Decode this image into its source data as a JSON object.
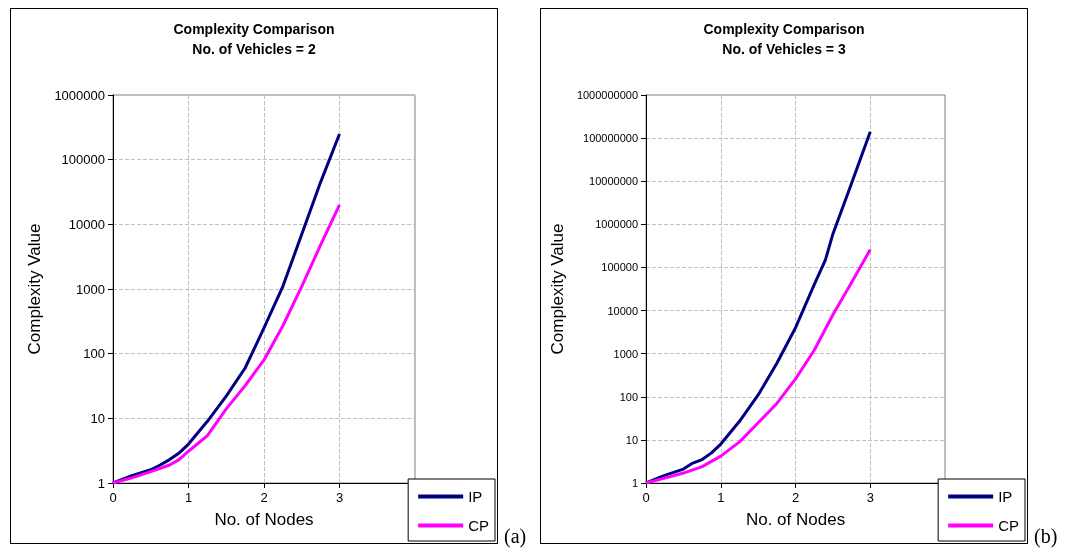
{
  "chart_data": [
    {
      "type": "line",
      "title": "Complexity Comparison",
      "subtitle": "No. of Vehicles = 2",
      "xlabel": "No. of Nodes",
      "ylabel": "Complexity Value",
      "annotations": [
        "(a)"
      ],
      "log": "y",
      "grid": true,
      "legend": "bottom right",
      "marker": "none",
      "line_style": "solid",
      "xlim": [
        0,
        4
      ],
      "xticks": [
        0,
        1,
        2,
        3
      ],
      "ylim": [
        1,
        1000000
      ],
      "yticks": [
        1,
        10,
        100,
        1000,
        10000,
        100000,
        1000000
      ],
      "series": [
        {
          "name": "IP",
          "color": "#000080",
          "x": [
            0,
            0.25,
            0.5,
            0.625,
            0.75,
            0.875,
            1,
            1.25,
            1.5,
            1.75,
            2,
            2.25,
            2.5,
            2.75,
            3
          ],
          "values": [
            1,
            1.3,
            1.6,
            1.9,
            2.3,
            2.9,
            4,
            9,
            22,
            60,
            250,
            1100,
            7000,
            45000,
            250000
          ]
        },
        {
          "name": "CP",
          "color": "#ff00ff",
          "x": [
            0,
            0.25,
            0.5,
            0.75,
            0.875,
            1,
            1.25,
            1.5,
            1.75,
            2,
            2.25,
            2.5,
            2.75,
            3
          ],
          "values": [
            1,
            1.2,
            1.5,
            1.9,
            2.3,
            3.1,
            5.4,
            14,
            32,
            80,
            270,
            1100,
            4800,
            20000
          ]
        }
      ]
    },
    {
      "type": "line",
      "title": "Complexity Comparison",
      "subtitle": "No. of Vehicles = 3",
      "xlabel": "No. of Nodes",
      "ylabel": "Complexity Value",
      "annotations": [
        "(b)"
      ],
      "log": "y",
      "grid": true,
      "legend": "bottom right",
      "marker": "none",
      "line_style": "solid",
      "xlim": [
        0,
        4
      ],
      "xticks": [
        0,
        1,
        2,
        3
      ],
      "ylim": [
        1,
        1000000000
      ],
      "yticks": [
        1,
        10,
        100,
        1000,
        10000,
        100000,
        1000000,
        10000000,
        100000000,
        1000000000
      ],
      "series": [
        {
          "name": "IP",
          "color": "#000080",
          "x": [
            0,
            0.25,
            0.5,
            0.625,
            0.75,
            0.875,
            1,
            1.25,
            1.5,
            1.75,
            2,
            2.25,
            2.4,
            2.5,
            2.75,
            3
          ],
          "values": [
            1,
            1.5,
            2.1,
            2.9,
            3.5,
            5,
            8,
            27,
            110,
            600,
            4000,
            40000,
            150000,
            600000,
            9000000,
            140000000
          ]
        },
        {
          "name": "CP",
          "color": "#ff00ff",
          "x": [
            0,
            0.25,
            0.5,
            0.75,
            1,
            1.25,
            1.5,
            1.75,
            2,
            2.25,
            2.5,
            2.75,
            3
          ],
          "values": [
            1,
            1.3,
            1.7,
            2.4,
            4.2,
            9,
            25,
            70,
            260,
            1200,
            8000,
            45000,
            260000
          ]
        }
      ]
    }
  ]
}
